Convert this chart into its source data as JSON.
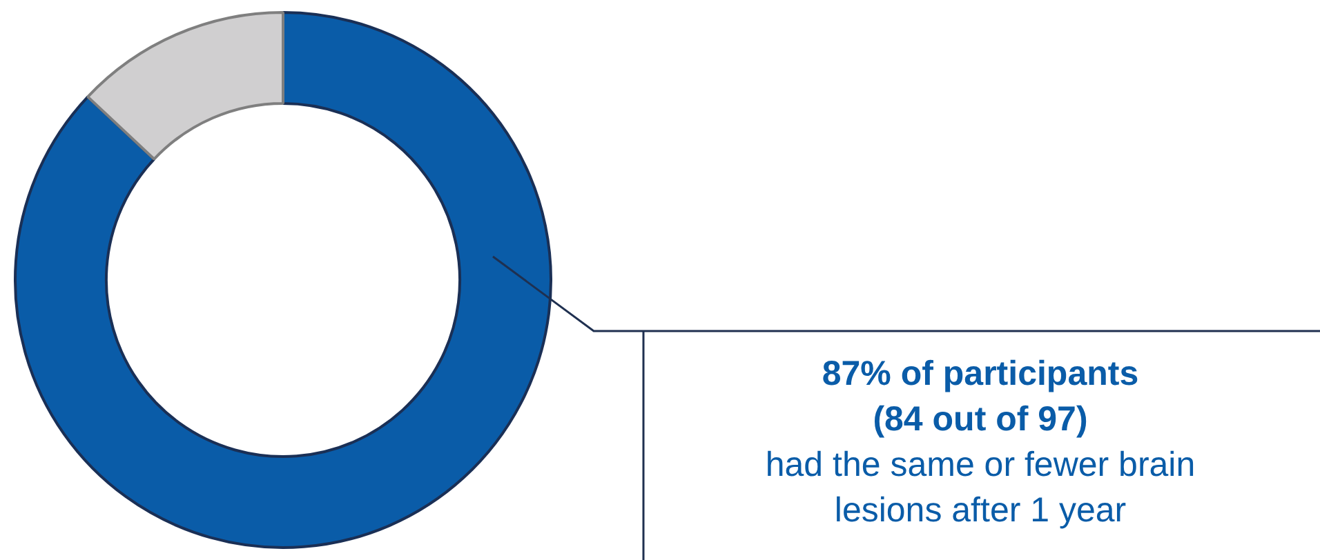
{
  "chart_data": {
    "type": "donut",
    "categories": [
      null,
      null
    ],
    "values": [
      87,
      13
    ],
    "colors": [
      "#0a5ca8",
      "#d0cfd0"
    ],
    "annotations": [
      "87% of participants",
      "(84 out of 97)",
      "had the same or fewer brain lesions after 1 year"
    ],
    "legend": false
  }
}
